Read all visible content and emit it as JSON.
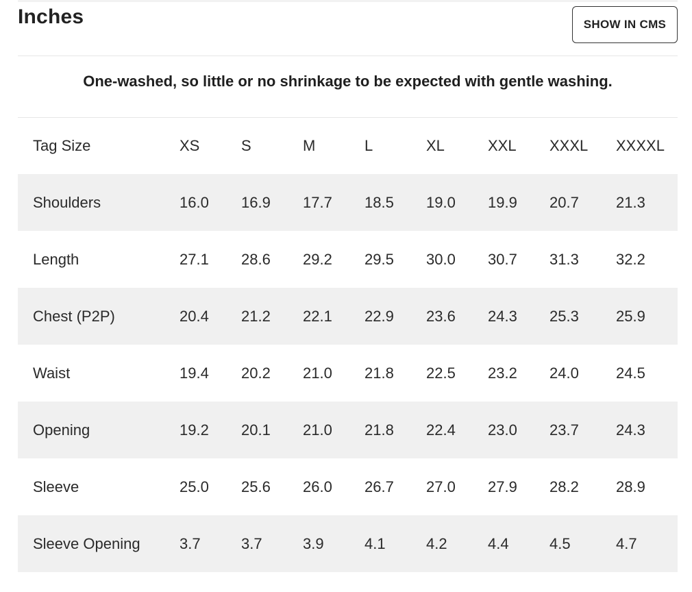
{
  "header": {
    "title": "Inches",
    "cms_button": "SHOW IN CMS"
  },
  "note": "One-washed, so little or no shrinkage to be expected with gentle washing.",
  "table": {
    "columns": [
      "Tag Size",
      "XS",
      "S",
      "M",
      "L",
      "XL",
      "XXL",
      "XXXL",
      "XXXXL"
    ],
    "rows": [
      {
        "label": "Shoulders",
        "values": [
          "16.0",
          "16.9",
          "17.7",
          "18.5",
          "19.0",
          "19.9",
          "20.7",
          "21.3"
        ]
      },
      {
        "label": "Length",
        "values": [
          "27.1",
          "28.6",
          "29.2",
          "29.5",
          "30.0",
          "30.7",
          "31.3",
          "32.2"
        ]
      },
      {
        "label": "Chest (P2P)",
        "values": [
          "20.4",
          "21.2",
          "22.1",
          "22.9",
          "23.6",
          "24.3",
          "25.3",
          "25.9"
        ]
      },
      {
        "label": "Waist",
        "values": [
          "19.4",
          "20.2",
          "21.0",
          "21.8",
          "22.5",
          "23.2",
          "24.0",
          "24.5"
        ]
      },
      {
        "label": "Opening",
        "values": [
          "19.2",
          "20.1",
          "21.0",
          "21.8",
          "22.4",
          "23.0",
          "23.7",
          "24.3"
        ]
      },
      {
        "label": "Sleeve",
        "values": [
          "25.0",
          "25.6",
          "26.0",
          "26.7",
          "27.0",
          "27.9",
          "28.2",
          "28.9"
        ]
      },
      {
        "label": "Sleeve Opening",
        "values": [
          "3.7",
          "3.7",
          "3.9",
          "4.1",
          "4.2",
          "4.4",
          "4.5",
          "4.7"
        ]
      }
    ]
  }
}
